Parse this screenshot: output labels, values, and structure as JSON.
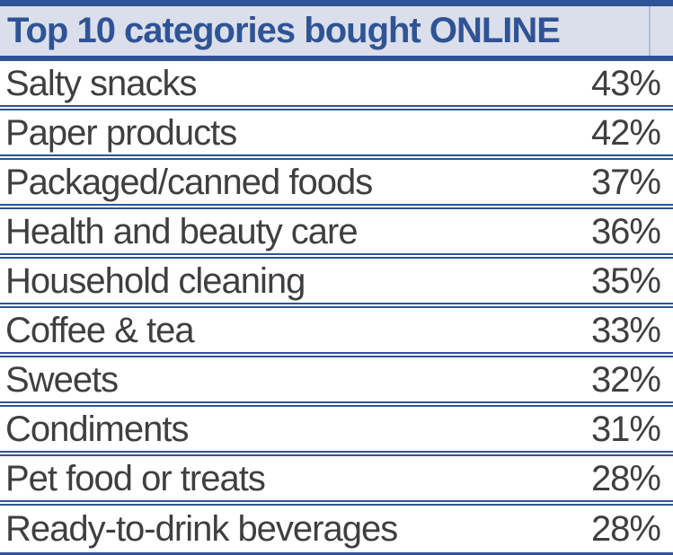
{
  "header": {
    "title": "Top 10 categories bought ONLINE"
  },
  "table": {
    "rows": [
      {
        "label": "Salty snacks",
        "value": "43%"
      },
      {
        "label": "Paper products",
        "value": "42%"
      },
      {
        "label": "Packaged/canned foods",
        "value": "37%"
      },
      {
        "label": "Health and beauty care",
        "value": "36%"
      },
      {
        "label": "Household cleaning",
        "value": "35%"
      },
      {
        "label": "Coffee & tea",
        "value": "33%"
      },
      {
        "label": "Sweets",
        "value": "32%"
      },
      {
        "label": "Condiments",
        "value": "31%"
      },
      {
        "label": "Pet food or treats",
        "value": "28%"
      },
      {
        "label": "Ready-to-drink beverages",
        "value": "28%"
      }
    ]
  },
  "colors": {
    "border_blue": "#2F5496",
    "header_bg": "#DBDFEB",
    "header_text": "#2F5496",
    "row_text": "#3F3F3F",
    "header_divider": "#B3BCD4"
  },
  "chart_data": {
    "type": "table",
    "title": "Top 10 categories bought ONLINE",
    "categories": [
      "Salty snacks",
      "Paper products",
      "Packaged/canned foods",
      "Health and beauty care",
      "Household cleaning",
      "Coffee & tea",
      "Sweets",
      "Condiments",
      "Pet food or treats",
      "Ready-to-drink beverages"
    ],
    "values": [
      43,
      42,
      37,
      36,
      35,
      33,
      32,
      31,
      28,
      28
    ],
    "unit": "%",
    "layout": "two-column ranked list, values right-aligned, double-rule row separators"
  }
}
